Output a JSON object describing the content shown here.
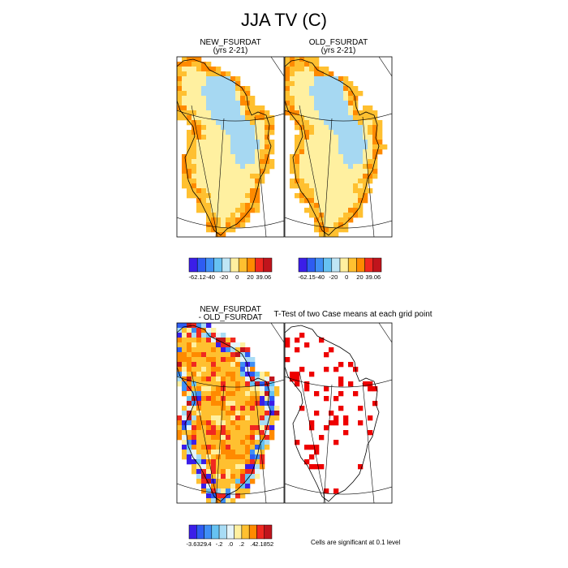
{
  "title": "JJA TV (C)",
  "panels": [
    {
      "title": "NEW_FSURDAT",
      "subtitle": "(yrs 2-21)"
    },
    {
      "title": "OLD_FSURDAT",
      "subtitle": "(yrs 2-21)"
    },
    {
      "title": "NEW_FSURDAT",
      "subtitle": "- OLD_FSURDAT"
    },
    {
      "title": "T-Test of two Case means at each grid point",
      "subtitle": ""
    }
  ],
  "note": "Cells are significant at 0.1 level",
  "colors": {
    "pos_scale": [
      "#3b1ee8",
      "#2e5cf2",
      "#3f8ff5",
      "#66c2f2",
      "#bfe6f5",
      "#fff0a0",
      "#ffc030",
      "#ff8a00",
      "#f02820",
      "#c0141c"
    ],
    "diff_scale": [
      "#3b1ee8",
      "#2e5cf2",
      "#3f8ff5",
      "#66c2f2",
      "#a8dcf5",
      "#e6f5fa",
      "#fff0a0",
      "#ffc030",
      "#ff8a00",
      "#f02820",
      "#c0141c"
    ],
    "ice": "#a6d8f2",
    "significant": "#ee0000"
  },
  "chart_data": [
    {
      "type": "heatmap",
      "title": "NEW_FSURDAT",
      "subtitle": "(yrs 2-21)",
      "colorbar_labels": [
        "-62.12",
        "-40",
        "-20",
        "0",
        "20",
        "39.06"
      ],
      "range": [
        -62.12,
        39.06
      ]
    },
    {
      "type": "heatmap",
      "title": "OLD_FSURDAT",
      "subtitle": "(yrs 2-21)",
      "colorbar_labels": [
        "-62.15",
        "-40",
        "-20",
        "0",
        "20",
        "39.06"
      ],
      "range": [
        -62.15,
        39.06
      ]
    },
    {
      "type": "heatmap",
      "title": "NEW_FSURDAT",
      "subtitle": "- OLD_FSURDAT",
      "colorbar_labels": [
        "-3.6329",
        "-.4",
        "-.2",
        ".0",
        ".2",
        ".4",
        "2.1852"
      ],
      "range": [
        -3.6329,
        2.1852
      ]
    },
    {
      "type": "heatmap",
      "title": "T-Test of two Case means at each grid point",
      "note": "Cells are significant at 0.1 level"
    }
  ]
}
